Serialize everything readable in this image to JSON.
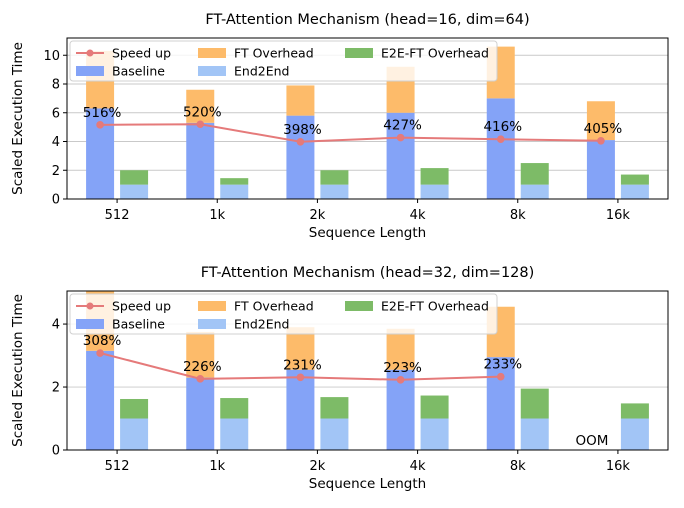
{
  "chart_data": [
    {
      "type": "bar",
      "title": "FT-Attention Mechanism (head=16, dim=64)",
      "xlabel": "Sequence Length",
      "ylabel": "Scaled Execution Time",
      "ylim": [
        0,
        11.2
      ],
      "yticks": [
        0,
        2,
        4,
        6,
        8,
        10
      ],
      "categories": [
        "512",
        "1k",
        "2k",
        "4k",
        "8k",
        "16k"
      ],
      "series": [
        {
          "name": "Baseline",
          "stack": "left",
          "values": [
            6.3,
            5.3,
            5.8,
            6.0,
            7.0,
            4.1
          ]
        },
        {
          "name": "FT Overhead",
          "stack": "left",
          "values": [
            4.0,
            2.3,
            2.1,
            3.2,
            3.6,
            2.7
          ]
        },
        {
          "name": "End2End",
          "stack": "right",
          "values": [
            1.0,
            1.0,
            1.0,
            1.0,
            1.0,
            1.0
          ]
        },
        {
          "name": "E2E-FT Overhead",
          "stack": "right",
          "values": [
            1.0,
            0.45,
            1.0,
            1.15,
            1.5,
            0.7
          ]
        },
        {
          "name": "Speed up",
          "type": "line",
          "values": [
            5.16,
            5.2,
            3.98,
            4.27,
            4.16,
            4.05
          ],
          "labels": [
            "516%",
            "520%",
            "398%",
            "427%",
            "416%",
            "405%"
          ]
        }
      ],
      "annotations": []
    },
    {
      "type": "bar",
      "title": "FT-Attention Mechanism (head=32, dim=128)",
      "xlabel": "Sequence Length",
      "ylabel": "Scaled Execution Time",
      "ylim": [
        0,
        5.05
      ],
      "yticks": [
        0,
        2,
        4
      ],
      "categories": [
        "512",
        "1k",
        "2k",
        "4k",
        "8k",
        "16k"
      ],
      "series": [
        {
          "name": "Baseline",
          "stack": "left",
          "values": [
            3.15,
            2.3,
            2.55,
            2.55,
            2.95,
            null
          ]
        },
        {
          "name": "FT Overhead",
          "stack": "left",
          "values": [
            1.9,
            1.45,
            1.35,
            1.3,
            1.6,
            null
          ]
        },
        {
          "name": "End2End",
          "stack": "right",
          "values": [
            1.0,
            1.0,
            1.0,
            1.0,
            1.0,
            1.0
          ]
        },
        {
          "name": "E2E-FT Overhead",
          "stack": "right",
          "values": [
            0.62,
            0.65,
            0.68,
            0.73,
            0.95,
            0.48
          ]
        },
        {
          "name": "Speed up",
          "type": "line",
          "values": [
            3.08,
            2.26,
            2.31,
            2.23,
            2.33,
            null
          ],
          "labels": [
            "308%",
            "226%",
            "231%",
            "223%",
            "233%",
            null
          ]
        }
      ],
      "annotations": [
        {
          "category": "16k",
          "text": "OOM"
        }
      ]
    }
  ],
  "legend": {
    "labels": [
      "Speed up",
      "FT Overhead",
      "E2E-FT Overhead",
      "Baseline",
      "End2End"
    ],
    "placement": "top-left"
  },
  "colors": {
    "baseline": "#84a3f7",
    "ft_overhead": "#fdbb6a",
    "end2end": "#a2c5f6",
    "e2e_ft_overhead": "#7dbb67",
    "speedup": "#e57a7a",
    "grid": "#c9c9c9"
  }
}
